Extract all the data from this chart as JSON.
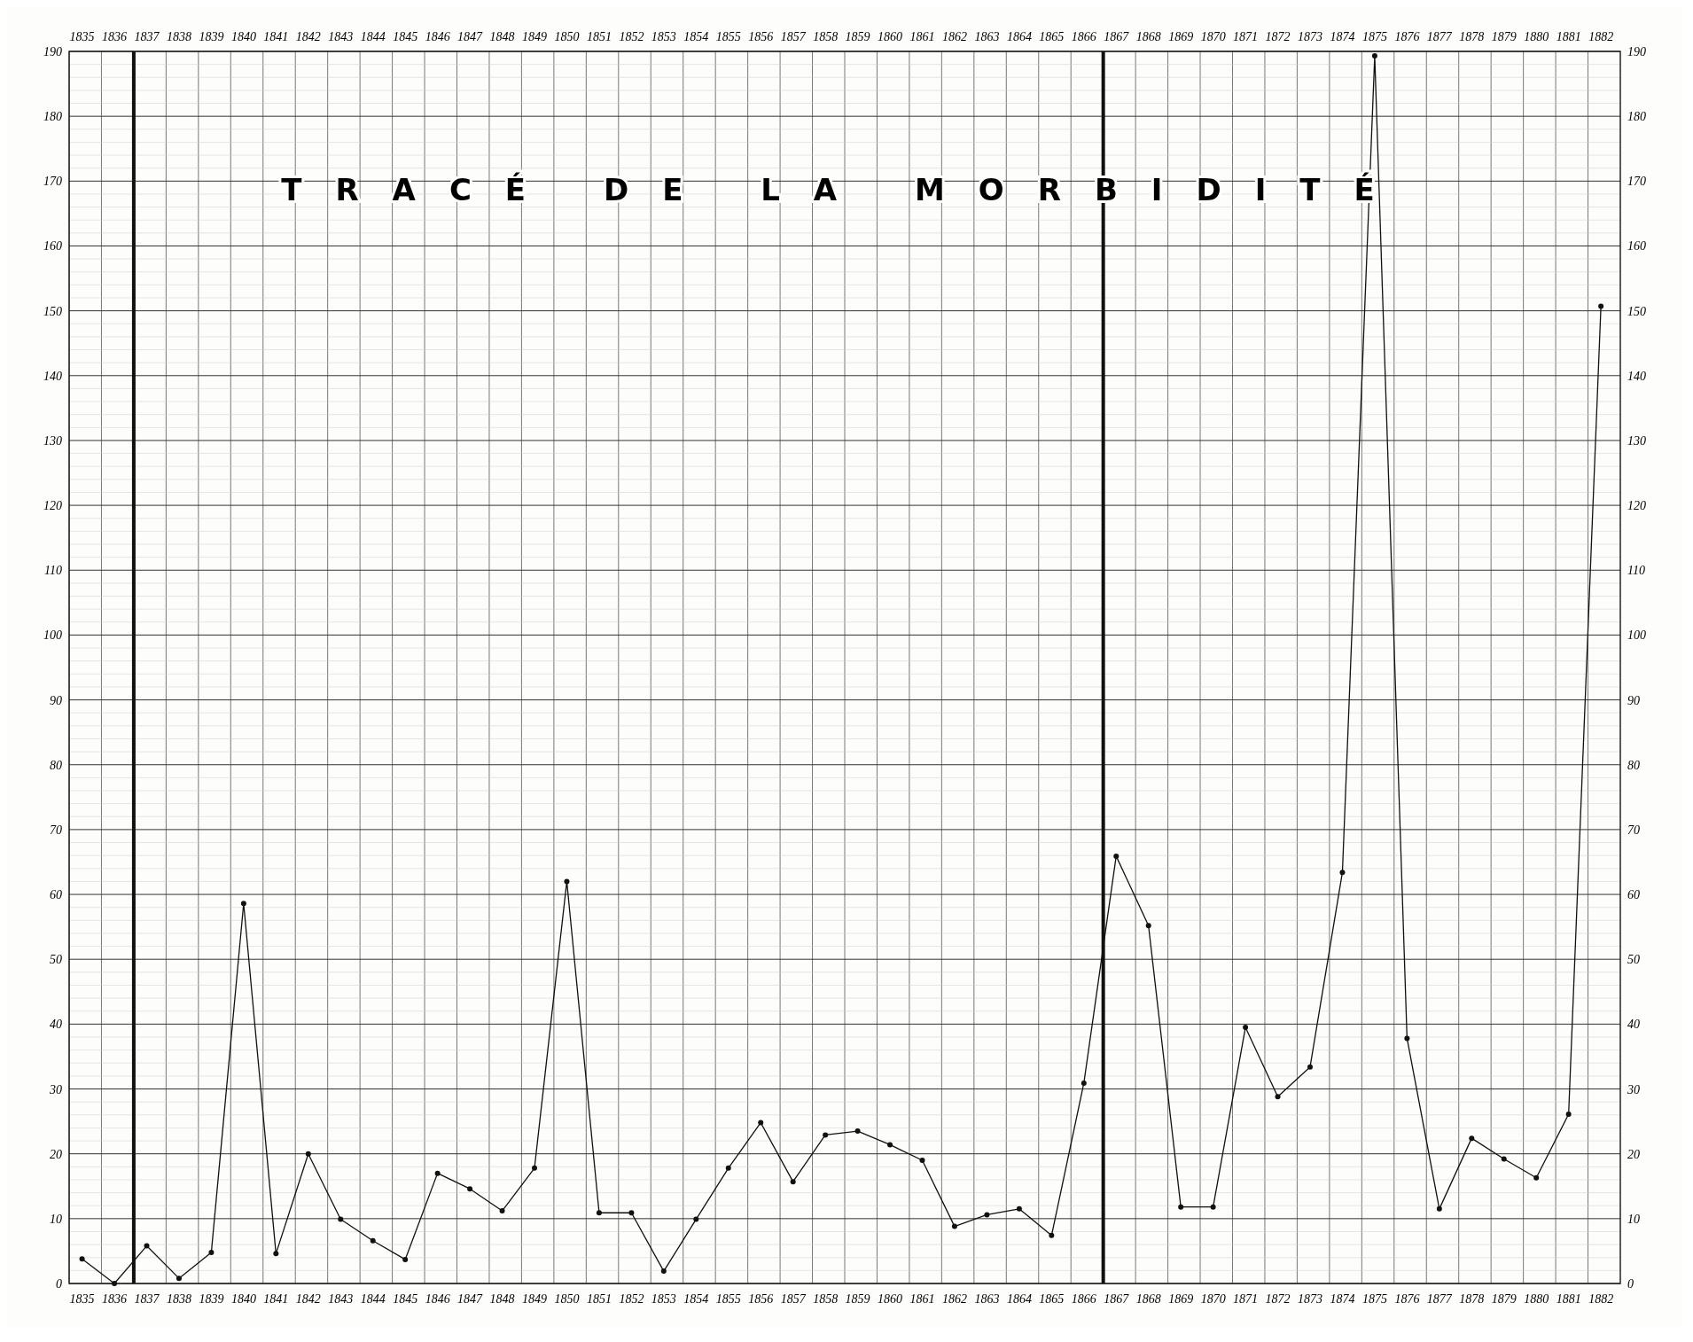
{
  "chart_data": {
    "type": "line",
    "title": "TRACÉ DE LA MORBIDITÉ",
    "x": [
      1835,
      1836,
      1837,
      1838,
      1839,
      1840,
      1841,
      1842,
      1843,
      1844,
      1845,
      1846,
      1847,
      1848,
      1849,
      1850,
      1851,
      1852,
      1853,
      1854,
      1855,
      1856,
      1857,
      1858,
      1859,
      1860,
      1861,
      1862,
      1863,
      1864,
      1865,
      1866,
      1867,
      1868,
      1869,
      1870,
      1871,
      1872,
      1873,
      1874,
      1875,
      1876,
      1877,
      1878,
      1879,
      1880,
      1881,
      1882
    ],
    "series": [
      {
        "color": "#111111",
        "values": [
          3.8,
          0,
          5.8,
          0.8,
          4.8,
          58.6,
          4.6,
          20,
          9.9,
          6.6,
          3.7,
          17,
          14.6,
          11.2,
          17.8,
          62,
          10.9,
          10.9,
          1.9,
          9.9,
          17.8,
          24.8,
          15.7,
          22.9,
          23.5,
          21.4,
          19,
          8.8,
          10.6,
          11.5,
          7.4,
          30.9,
          65.9,
          55.2,
          11.8,
          11.8,
          39.5,
          28.8,
          33.4,
          63.4,
          189.3,
          37.8,
          11.5,
          22.4,
          19.2,
          16.3,
          26.1,
          150.7
        ]
      }
    ],
    "xlim": [
      1834.6,
      1882.6
    ],
    "xticks": [
      1835,
      1836,
      1837,
      1838,
      1839,
      1840,
      1841,
      1842,
      1843,
      1844,
      1845,
      1846,
      1847,
      1848,
      1849,
      1850,
      1851,
      1852,
      1853,
      1854,
      1855,
      1856,
      1857,
      1858,
      1859,
      1860,
      1861,
      1862,
      1863,
      1864,
      1865,
      1866,
      1867,
      1868,
      1869,
      1870,
      1871,
      1872,
      1873,
      1874,
      1875,
      1876,
      1877,
      1878,
      1879,
      1880,
      1881,
      1882
    ],
    "x2lim": [
      1834.6,
      1882.6
    ],
    "x2ticks": [
      1835,
      1836,
      1837,
      1838,
      1839,
      1840,
      1841,
      1842,
      1843,
      1844,
      1845,
      1846,
      1847,
      1848,
      1849,
      1850,
      1851,
      1852,
      1853,
      1854,
      1855,
      1856,
      1857,
      1858,
      1859,
      1860,
      1861,
      1862,
      1863,
      1864,
      1865,
      1866,
      1867,
      1868,
      1869,
      1870,
      1871,
      1872,
      1873,
      1874,
      1875,
      1876,
      1877,
      1878,
      1879,
      1880,
      1881,
      1882
    ],
    "ylim": [
      0,
      190
    ],
    "yticks": [
      0,
      10,
      20,
      30,
      40,
      50,
      60,
      70,
      80,
      90,
      100,
      110,
      120,
      130,
      140,
      150,
      160,
      170,
      180,
      190
    ],
    "y2lim": [
      0,
      190
    ],
    "y2ticks": [
      0,
      10,
      20,
      30,
      40,
      50,
      60,
      70,
      80,
      90,
      100,
      110,
      120,
      130,
      140,
      150,
      160,
      170,
      180,
      190
    ],
    "ref_lines": [
      {
        "axis": "x",
        "value": 1836.6,
        "line_style": "solid"
      },
      {
        "axis": "x",
        "value": 1866.6,
        "line_style": "solid"
      }
    ],
    "grid": true,
    "marker": "circle",
    "line_style": "solid"
  }
}
